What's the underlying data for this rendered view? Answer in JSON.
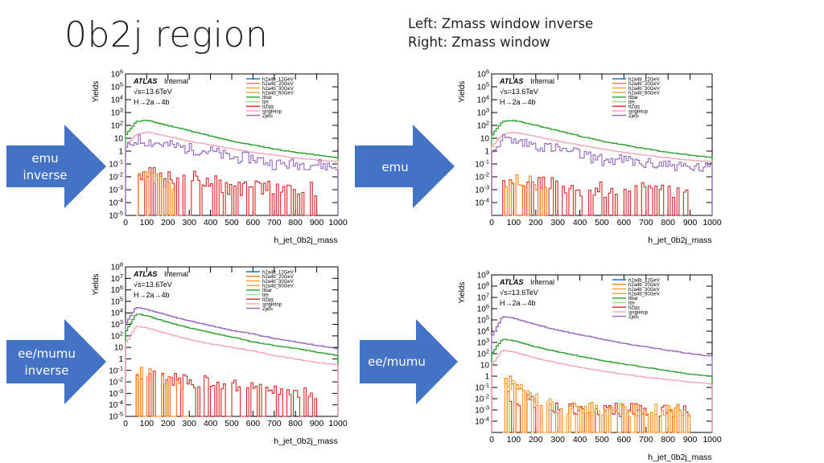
{
  "slide": {
    "title": "0b2j region",
    "note_lines": [
      "Left: Zmass window inverse",
      "Right: Zmass window"
    ]
  },
  "arrows": [
    {
      "lines": [
        "emu",
        "inverse"
      ]
    },
    {
      "lines": [
        "emu"
      ]
    },
    {
      "lines": [
        "ee/mumu",
        "inverse"
      ]
    },
    {
      "lines": [
        "ee/mumu"
      ]
    }
  ],
  "colors": {
    "arrow_fill": "#4472C4",
    "h2a4b_12GeV": "#1f77b4",
    "h2a4b_20GeV": "#ff7f0e",
    "h2a4b_30GeV": "#ff9c2a",
    "h2a4b_60GeV": "#e8a33d",
    "ttbar": "#2ca02c",
    "ttH": "#98df8a",
    "ttZqq": "#d62728",
    "singletop": "#f4a6b7",
    "Zjets": "#9467bd"
  },
  "chart_data": [
    {
      "type": "line",
      "panel": "emu inverse",
      "xlabel": "h_jet_0b2j_mass",
      "ylabel": "Yields",
      "xlim": [
        0,
        1000
      ],
      "xticks": [
        0,
        100,
        200,
        300,
        400,
        500,
        600,
        700,
        800,
        900,
        1000
      ],
      "ylim_exp": [
        -5,
        6
      ],
      "ytick_labels": [
        "10^6",
        "10^5",
        "10^4",
        "10^3",
        "10^2",
        "10",
        "1",
        "10^-1",
        "10^-2",
        "10^-3",
        "10^-4",
        "10^-5"
      ],
      "label_lines": [
        "ATLAS",
        "Internal",
        "√s=13.6TeV",
        "H→2a→4b"
      ],
      "legend": [
        "h2a4b_12GeV",
        "h2a4b_20GeV",
        "h2a4b_30GeV",
        "h2a4b_60GeV",
        "ttbar",
        "ttH",
        "ttZqq",
        "singletop",
        "Zjets"
      ],
      "series": [
        {
          "name": "ttbar",
          "x": [
            0,
            50,
            100,
            200,
            300,
            400,
            500,
            600,
            700,
            800,
            900,
            1000
          ],
          "y": [
            15,
            200,
            250,
            100,
            40,
            15,
            6,
            3,
            1.5,
            0.8,
            0.5,
            0.3
          ]
        },
        {
          "name": "singletop",
          "x": [
            0,
            50,
            100,
            200,
            300,
            400,
            500,
            600,
            700,
            800,
            900,
            1000
          ],
          "y": [
            2,
            20,
            30,
            14,
            6,
            3,
            1.5,
            0.8,
            0.5,
            0.3,
            0.2,
            0.15
          ]
        },
        {
          "name": "Zjets",
          "x": [
            0,
            50,
            100,
            200,
            300,
            400,
            500,
            600,
            700,
            800,
            900,
            1000
          ],
          "y": [
            1,
            8,
            6,
            3,
            1.5,
            1,
            0.3,
            0.3,
            0.1,
            0.1,
            0.1,
            0.05
          ]
        },
        {
          "name": "ttZqq",
          "x": [
            50,
            100,
            200,
            300,
            400,
            500,
            600,
            700,
            800,
            900
          ],
          "y": [
            0.01,
            0.02,
            0.01,
            0.01,
            0.005,
            0.001,
            0.002,
            0.001,
            0.001,
            0.001
          ]
        },
        {
          "name": "h2a4b_20GeV",
          "x": [
            50,
            100,
            150,
            200,
            250
          ],
          "y": [
            0.005,
            0.02,
            0.01,
            0.005,
            0.002
          ]
        }
      ]
    },
    {
      "type": "line",
      "panel": "emu",
      "xlabel": "h_jet_0b2j_mass",
      "ylabel": "Yields",
      "xlim": [
        0,
        1000
      ],
      "xticks": [
        0,
        100,
        200,
        300,
        400,
        500,
        600,
        700,
        800,
        900,
        1000
      ],
      "ylim_exp": [
        -5,
        6
      ],
      "ytick_labels": [
        "10^6",
        "10^5",
        "10^4",
        "10^3",
        "10^2",
        "10",
        "1",
        "10^-1",
        "10^-2",
        "10^-3",
        "10^-4"
      ],
      "label_lines": [
        "ATLAS",
        "Internal",
        "√s=13.6TeV",
        "H→2a→4b"
      ],
      "legend": [
        "h2a4b_12GeV",
        "h2a4b_20GeV",
        "h2a4b_30GeV",
        "h2a4b_60GeV",
        "ttbar",
        "ttH",
        "ttZqq",
        "singletop",
        "Zjets"
      ],
      "series": [
        {
          "name": "ttbar",
          "x": [
            0,
            50,
            100,
            200,
            300,
            400,
            500,
            600,
            700,
            800,
            900,
            1000
          ],
          "y": [
            15,
            200,
            250,
            100,
            40,
            15,
            6,
            3,
            1.5,
            0.8,
            0.5,
            0.3
          ]
        },
        {
          "name": "singletop",
          "x": [
            0,
            50,
            100,
            200,
            300,
            400,
            500,
            600,
            700,
            800,
            900,
            1000
          ],
          "y": [
            2,
            20,
            30,
            14,
            6,
            3,
            1.5,
            0.8,
            0.5,
            0.3,
            0.2,
            0.15
          ]
        },
        {
          "name": "Zjets",
          "x": [
            0,
            50,
            100,
            200,
            300,
            400,
            500,
            600,
            700,
            800,
            900,
            1000
          ],
          "y": [
            1,
            10,
            6,
            3,
            1.5,
            0.6,
            0.2,
            0.2,
            0.1,
            0.1,
            0.05,
            0.05
          ]
        },
        {
          "name": "ttZqq",
          "x": [
            50,
            100,
            200,
            300,
            400,
            500,
            600,
            700,
            800,
            900
          ],
          "y": [
            0.01,
            0.01,
            0.005,
            0.002,
            0.001,
            0.001,
            0.001,
            0.001,
            0.001,
            0.001
          ]
        },
        {
          "name": "h2a4b_20GeV",
          "x": [
            50,
            100,
            150,
            200,
            250
          ],
          "y": [
            0.005,
            0.01,
            0.005,
            0.002,
            0.001
          ]
        }
      ]
    },
    {
      "type": "line",
      "panel": "ee/mumu inverse",
      "xlabel": "h_jet_0b2j_mass",
      "ylabel": "Yields",
      "xlim": [
        0,
        1000
      ],
      "xticks": [
        0,
        100,
        200,
        300,
        400,
        500,
        600,
        700,
        800,
        900,
        1000
      ],
      "ylim_exp": [
        -5,
        8
      ],
      "ytick_labels": [
        "10^8",
        "10^7",
        "10^6",
        "10^5",
        "10^4",
        "10^3",
        "10^2",
        "10",
        "1",
        "10^-1",
        "10^-2",
        "10^-3",
        "10^-4",
        "10^-5"
      ],
      "label_lines": [
        "ATLAS",
        "Internal",
        "√s=13.6TeV",
        "H→2a→4b"
      ],
      "legend": [
        "h2a4b_12GeV",
        "h2a4b_20GeV",
        "h2a4b_30GeV",
        "h2a4b_60GeV",
        "ttbar",
        "ttH",
        "ttZqq",
        "singletop",
        "Zjets"
      ],
      "series": [
        {
          "name": "Zjets",
          "x": [
            0,
            50,
            100,
            200,
            300,
            400,
            500,
            600,
            700,
            800,
            900,
            1000
          ],
          "y": [
            1000,
            30000,
            20000,
            6000,
            2000,
            800,
            300,
            150,
            60,
            30,
            15,
            8
          ]
        },
        {
          "name": "ttbar",
          "x": [
            0,
            50,
            100,
            200,
            300,
            400,
            500,
            600,
            700,
            800,
            900,
            1000
          ],
          "y": [
            200,
            8000,
            6000,
            1500,
            500,
            200,
            80,
            30,
            15,
            8,
            4,
            2
          ]
        },
        {
          "name": "singletop",
          "x": [
            0,
            50,
            100,
            200,
            300,
            400,
            500,
            600,
            700,
            800,
            900,
            1000
          ],
          "y": [
            20,
            700,
            500,
            150,
            50,
            20,
            10,
            5,
            2,
            1,
            0.5,
            0.3
          ]
        },
        {
          "name": "ttZqq",
          "x": [
            50,
            100,
            200,
            300,
            400,
            500,
            600,
            700,
            800,
            900
          ],
          "y": [
            0.05,
            0.05,
            0.02,
            0.01,
            0.01,
            0.005,
            0.005,
            0.002,
            0.002,
            0.001
          ]
        },
        {
          "name": "h2a4b_20GeV",
          "x": [
            50,
            100,
            150,
            200,
            250,
            300
          ],
          "y": [
            0.05,
            0.05,
            0.02,
            0.01,
            0.005,
            0.002
          ]
        }
      ]
    },
    {
      "type": "line",
      "panel": "ee/mumu",
      "xlabel": "h_jet_0b2j_mass",
      "ylabel": "Yields",
      "xlim": [
        0,
        1000
      ],
      "xticks": [
        0,
        100,
        200,
        300,
        400,
        500,
        600,
        700,
        800,
        900,
        1000
      ],
      "ylim_exp": [
        -5,
        9
      ],
      "ytick_labels": [
        "10^9",
        "10^8",
        "10^7",
        "10^6",
        "10^5",
        "10^4",
        "10^3",
        "10^2",
        "10",
        "1",
        "10^-1",
        "10^-2",
        "10^-3",
        "10^-4"
      ],
      "label_lines": [
        "ATLAS",
        "Internal",
        "√s=13.6TeV",
        "H→2a→4b"
      ],
      "legend": [
        "h2a4b_12GeV",
        "h2a4b_20GeV",
        "h2a4b_30GeV",
        "h2a4b_60GeV",
        "ttbar",
        "ttH",
        "ttZqq",
        "singletop",
        "Zjets"
      ],
      "series": [
        {
          "name": "Zjets",
          "x": [
            0,
            50,
            100,
            200,
            300,
            400,
            500,
            600,
            700,
            800,
            900,
            1000
          ],
          "y": [
            3000,
            200000,
            150000,
            40000,
            12000,
            5000,
            2000,
            800,
            400,
            200,
            100,
            60
          ]
        },
        {
          "name": "ttbar",
          "x": [
            0,
            50,
            100,
            200,
            300,
            400,
            500,
            600,
            700,
            800,
            900,
            1000
          ],
          "y": [
            100,
            2000,
            1500,
            400,
            150,
            60,
            25,
            12,
            6,
            3,
            1.5,
            1
          ]
        },
        {
          "name": "singletop",
          "x": [
            0,
            50,
            100,
            200,
            300,
            400,
            500,
            600,
            700,
            800,
            900,
            1000
          ],
          "y": [
            10,
            200,
            150,
            40,
            15,
            6,
            3,
            1.5,
            0.8,
            0.5,
            0.3,
            0.2
          ]
        },
        {
          "name": "ttZqq",
          "x": [
            50,
            100,
            200,
            300,
            400,
            500,
            600,
            700,
            800,
            900
          ],
          "y": [
            0.05,
            0.01,
            0.005,
            0.002,
            0.001,
            0.001,
            0.001,
            0.001,
            0.001,
            0.001
          ]
        },
        {
          "name": "h2a4b_20GeV",
          "x": [
            50,
            100,
            150,
            200,
            250,
            300,
            400,
            500,
            600,
            700,
            800,
            900
          ],
          "y": [
            0.5,
            0.2,
            0.05,
            0.01,
            0.005,
            0.002,
            0.002,
            0.001,
            0.001,
            0.001,
            0.001,
            0.001
          ]
        },
        {
          "name": "h2a4b_30GeV",
          "x": [
            50,
            100,
            150,
            200,
            250,
            300,
            400,
            500,
            600,
            700,
            800,
            900
          ],
          "y": [
            0.3,
            0.1,
            0.05,
            0.01,
            0.005,
            0.002,
            0.001,
            0.001,
            0.001,
            0.001,
            0.001,
            0.001
          ]
        }
      ]
    }
  ]
}
